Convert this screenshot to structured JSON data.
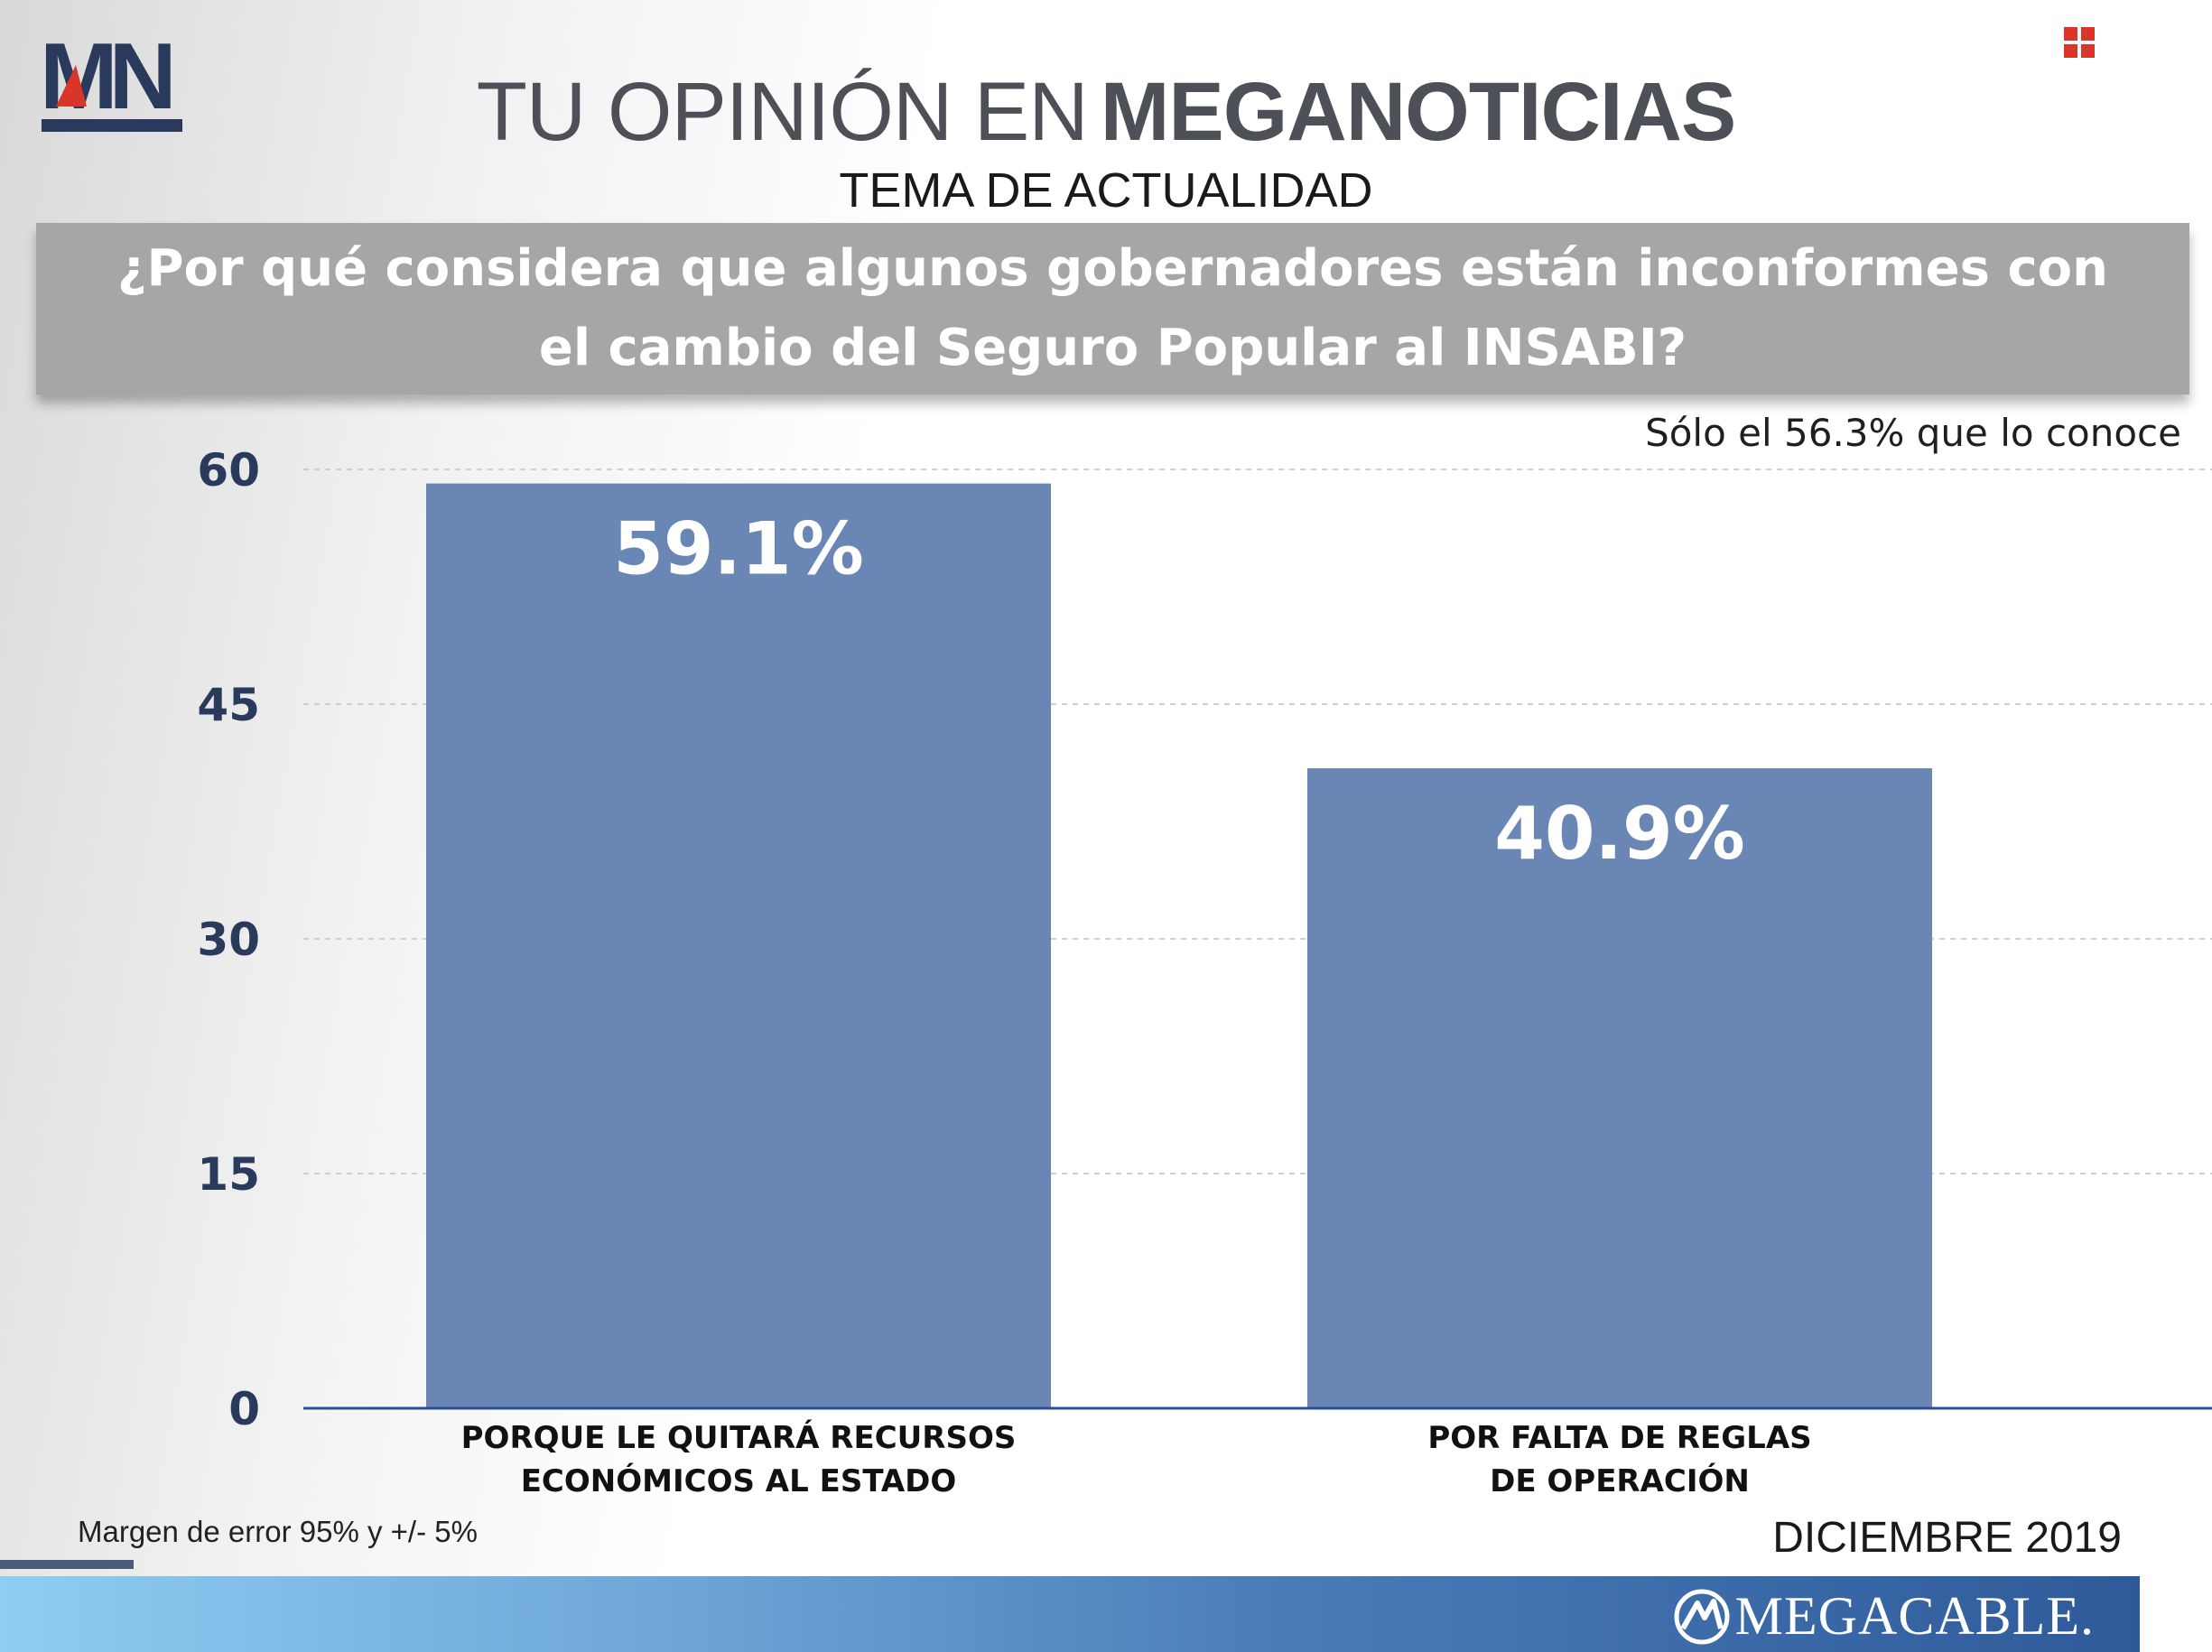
{
  "logo": {
    "text": "MN"
  },
  "header": {
    "title_light": "TU OPINIÓN EN",
    "title_bold": "MEGANOTICIAS",
    "subtitle": "TEMA DE ACTUALIDAD"
  },
  "question": "¿Por qué considera que algunos gobernadores están inconformes con el cambio del Seguro Popular al INSABI?",
  "note_top": "Sólo el 56.3% que lo conoce",
  "chart_data": {
    "type": "bar",
    "categories": [
      "PORQUE LE QUITARÁ RECURSOS ECONÓMICOS AL ESTADO",
      "POR FALTA DE REGLAS DE OPERACIÓN"
    ],
    "category_lines": [
      [
        "PORQUE LE QUITARÁ RECURSOS",
        "ECONÓMICOS AL ESTADO"
      ],
      [
        "POR FALTA DE REGLAS",
        "DE OPERACIÓN"
      ]
    ],
    "values": [
      59.1,
      40.9
    ],
    "data_labels": [
      "59.1%",
      "40.9%"
    ],
    "yticks": [
      "0",
      "15",
      "30",
      "45",
      "60"
    ],
    "ylim": [
      0,
      60
    ],
    "grid": true,
    "bar_color": "#6a86b4",
    "legend": "none"
  },
  "footer": {
    "margin_note": "Margen de error 95% y +/- 5%",
    "date": "DICIEMBRE 2019",
    "brand": "MEGACABLE."
  },
  "colors": {
    "logo_navy": "#2a3a5c",
    "logo_red": "#d9352a",
    "axis_line": "#2b4f9a"
  }
}
